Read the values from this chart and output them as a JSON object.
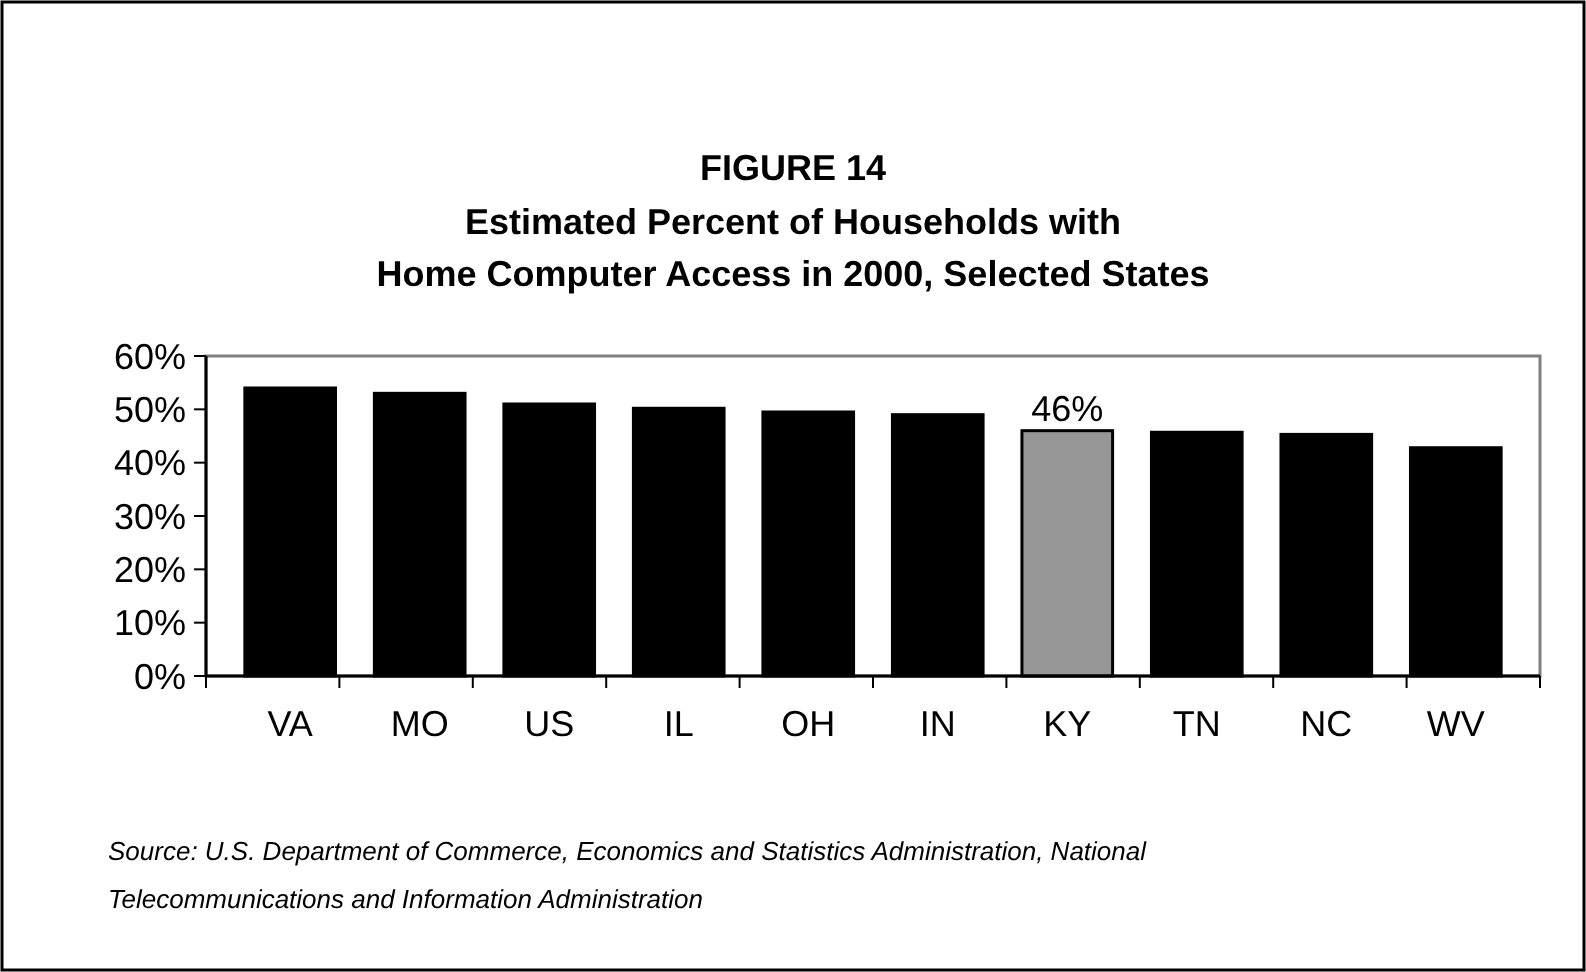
{
  "chart_data": {
    "type": "bar",
    "title": "FIGURE  14",
    "subtitle": "Estimated Percent of Households with\nHome Computer Access in 2000, Selected States",
    "categories": [
      "VA",
      "MO",
      "US",
      "IL",
      "OH",
      "IN",
      "KY",
      "TN",
      "NC",
      "WV"
    ],
    "values": [
      54,
      53,
      51,
      50.2,
      49.5,
      49,
      46,
      45.7,
      45.3,
      42.8
    ],
    "colors": [
      "#000000",
      "#000000",
      "#000000",
      "#000000",
      "#000000",
      "#000000",
      "#969696",
      "#000000",
      "#000000",
      "#000000"
    ],
    "value_labels": [
      null,
      null,
      null,
      null,
      null,
      null,
      "46%",
      null,
      null,
      null
    ],
    "ylim": [
      0,
      60
    ],
    "yticks": [
      {
        "value": 0,
        "label": "0%"
      },
      {
        "value": 10,
        "label": "10%"
      },
      {
        "value": 20,
        "label": "20%"
      },
      {
        "value": 30,
        "label": "30%"
      },
      {
        "value": 40,
        "label": "40%"
      },
      {
        "value": 50,
        "label": "50%"
      },
      {
        "value": 60,
        "label": "60%"
      }
    ],
    "annotations": [
      "Source: U.S. Department of Commerce, Economics and Statistics Administration, National\nTelecommunications and Information Administration"
    ]
  }
}
